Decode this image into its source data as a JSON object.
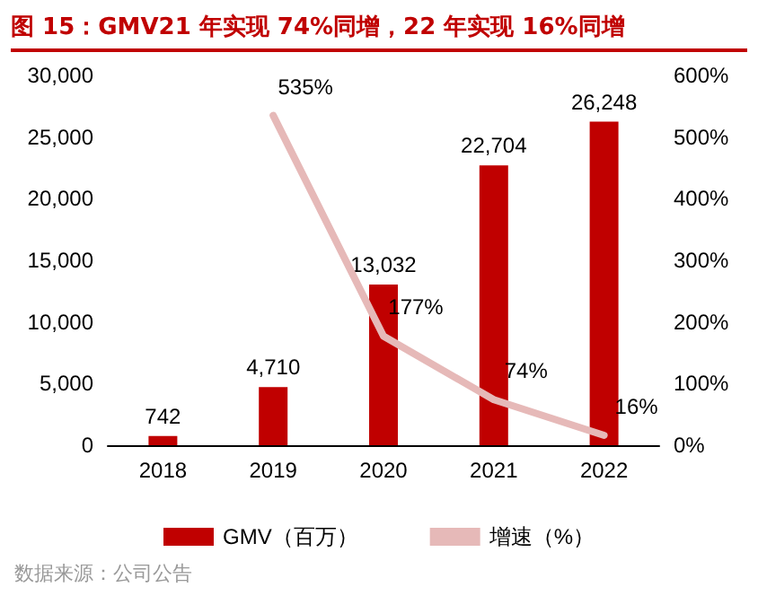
{
  "chart_data": {
    "type": "bar",
    "title": "图 15：GMV21 年实现 74%同增，22 年实现 16%同增",
    "categories": [
      "2018",
      "2019",
      "2020",
      "2021",
      "2022"
    ],
    "series": [
      {
        "name": "GMV（百万）",
        "color": "#c00000",
        "values": [
          742,
          4710,
          13032,
          22704,
          26248
        ],
        "value_labels": [
          "742",
          "4,710",
          "13,032",
          "22,704",
          "26,248"
        ]
      },
      {
        "name": "增速（%）",
        "type": "line",
        "axis": "y2",
        "color": "#e6b9b8",
        "values": [
          null,
          535,
          177,
          74,
          16
        ],
        "value_labels": [
          null,
          "535%",
          "177%",
          "74%",
          "16%"
        ]
      }
    ],
    "ylim": [
      0,
      30000
    ],
    "yticks": [
      0,
      {
        "value": 5000,
        "label": "5,000"
      },
      {
        "value": 10000,
        "label": "10,000"
      },
      {
        "value": 15000,
        "label": "15,000"
      },
      {
        "value": 20000,
        "label": "20,000"
      },
      {
        "value": 25000,
        "label": "25,000"
      },
      {
        "value": 30000,
        "label": "30,000"
      }
    ],
    "y2lim": [
      0,
      600
    ],
    "y2ticks": [
      {
        "value": 0,
        "label": "0%"
      },
      {
        "value": 100,
        "label": "100%"
      },
      {
        "value": 200,
        "label": "200%"
      },
      {
        "value": 300,
        "label": "300%"
      },
      {
        "value": 400,
        "label": "400%"
      },
      {
        "value": 500,
        "label": "500%"
      },
      {
        "value": 600,
        "label": "600%"
      }
    ],
    "grid": false,
    "legend": "bottom",
    "marker": "none",
    "line_style": "solid",
    "annotations": [
      "数据来源：公司公告"
    ]
  }
}
